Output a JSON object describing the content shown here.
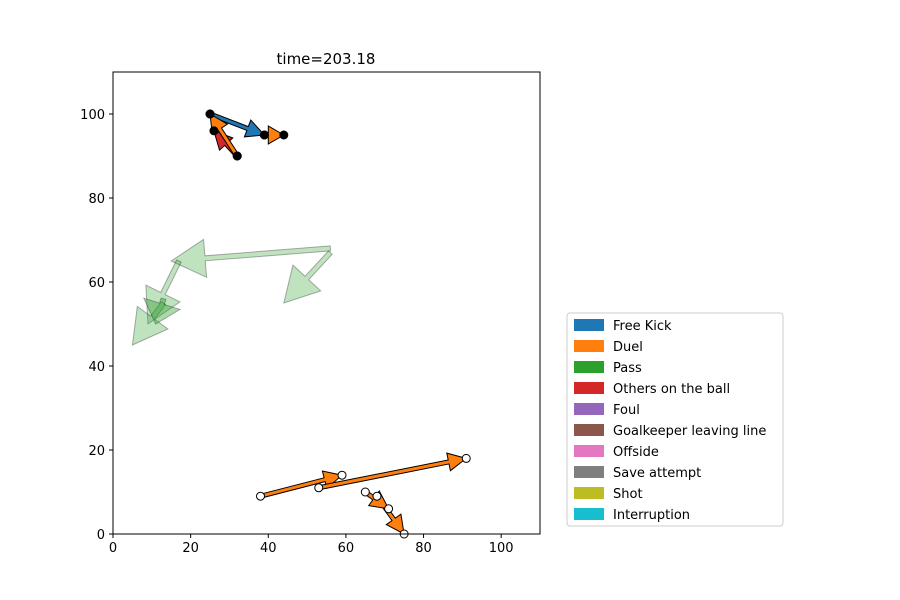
{
  "chart_data": {
    "type": "scatter",
    "title": "time=203.18",
    "xlabel": "",
    "ylabel": "",
    "xlim": [
      0,
      110
    ],
    "ylim": [
      0,
      110
    ],
    "xticks": [
      0,
      20,
      40,
      60,
      80,
      100
    ],
    "yticks": [
      0,
      20,
      40,
      60,
      80,
      100
    ],
    "grid": false,
    "legend_position": "bottom-right, outside plot",
    "legend": [
      {
        "label": "Free Kick",
        "color": "#1f77b4"
      },
      {
        "label": "Duel",
        "color": "#ff7f0e"
      },
      {
        "label": "Pass",
        "color": "#2ca02c"
      },
      {
        "label": "Others on the ball",
        "color": "#d62728"
      },
      {
        "label": "Foul",
        "color": "#9467bd"
      },
      {
        "label": "Goalkeeper leaving line",
        "color": "#8c564b"
      },
      {
        "label": "Offside",
        "color": "#e377c2"
      },
      {
        "label": "Save attempt",
        "color": "#7f7f7f"
      },
      {
        "label": "Shot",
        "color": "#bcbd22"
      },
      {
        "label": "Interruption",
        "color": "#17becf"
      }
    ],
    "arrows": [
      {
        "event": "Free Kick",
        "team": "filled",
        "from": [
          25,
          100
        ],
        "to": [
          39,
          95
        ],
        "alpha": 1
      },
      {
        "event": "Duel",
        "team": "filled",
        "from": [
          39,
          95
        ],
        "to": [
          44,
          95
        ],
        "alpha": 1
      },
      {
        "event": "Others on the ball",
        "team": "filled",
        "from": [
          32,
          90
        ],
        "to": [
          26,
          96
        ],
        "alpha": 1
      },
      {
        "event": "Duel",
        "team": "filled",
        "from": [
          32,
          90
        ],
        "to": [
          25,
          100
        ],
        "alpha": 1
      },
      {
        "event": "Pass",
        "team": "faded",
        "from": [
          56,
          68
        ],
        "to": [
          15,
          65
        ],
        "alpha": 0.3
      },
      {
        "event": "Pass",
        "team": "faded",
        "from": [
          56,
          67
        ],
        "to": [
          44,
          55
        ],
        "alpha": 0.3
      },
      {
        "event": "Pass",
        "team": "faded",
        "from": [
          17,
          65
        ],
        "to": [
          9,
          50
        ],
        "alpha": 0.3
      },
      {
        "event": "Pass",
        "team": "faded",
        "from": [
          13,
          55
        ],
        "to": [
          5,
          45
        ],
        "alpha": 0.3
      },
      {
        "event": "Pass",
        "team": "faded",
        "from": [
          13,
          56
        ],
        "to": [
          11,
          50
        ],
        "alpha": 0.4
      },
      {
        "event": "Duel",
        "team": "hollow",
        "from": [
          38,
          9
        ],
        "to": [
          59,
          14
        ],
        "alpha": 1
      },
      {
        "event": "Duel",
        "team": "hollow",
        "from": [
          53,
          11
        ],
        "to": [
          91,
          18
        ],
        "alpha": 1
      },
      {
        "event": "Duel",
        "team": "hollow",
        "from": [
          68,
          9
        ],
        "to": [
          75,
          0
        ],
        "alpha": 1
      },
      {
        "event": "Duel",
        "team": "hollow",
        "from": [
          65,
          10
        ],
        "to": [
          71,
          6
        ],
        "alpha": 1
      }
    ]
  }
}
